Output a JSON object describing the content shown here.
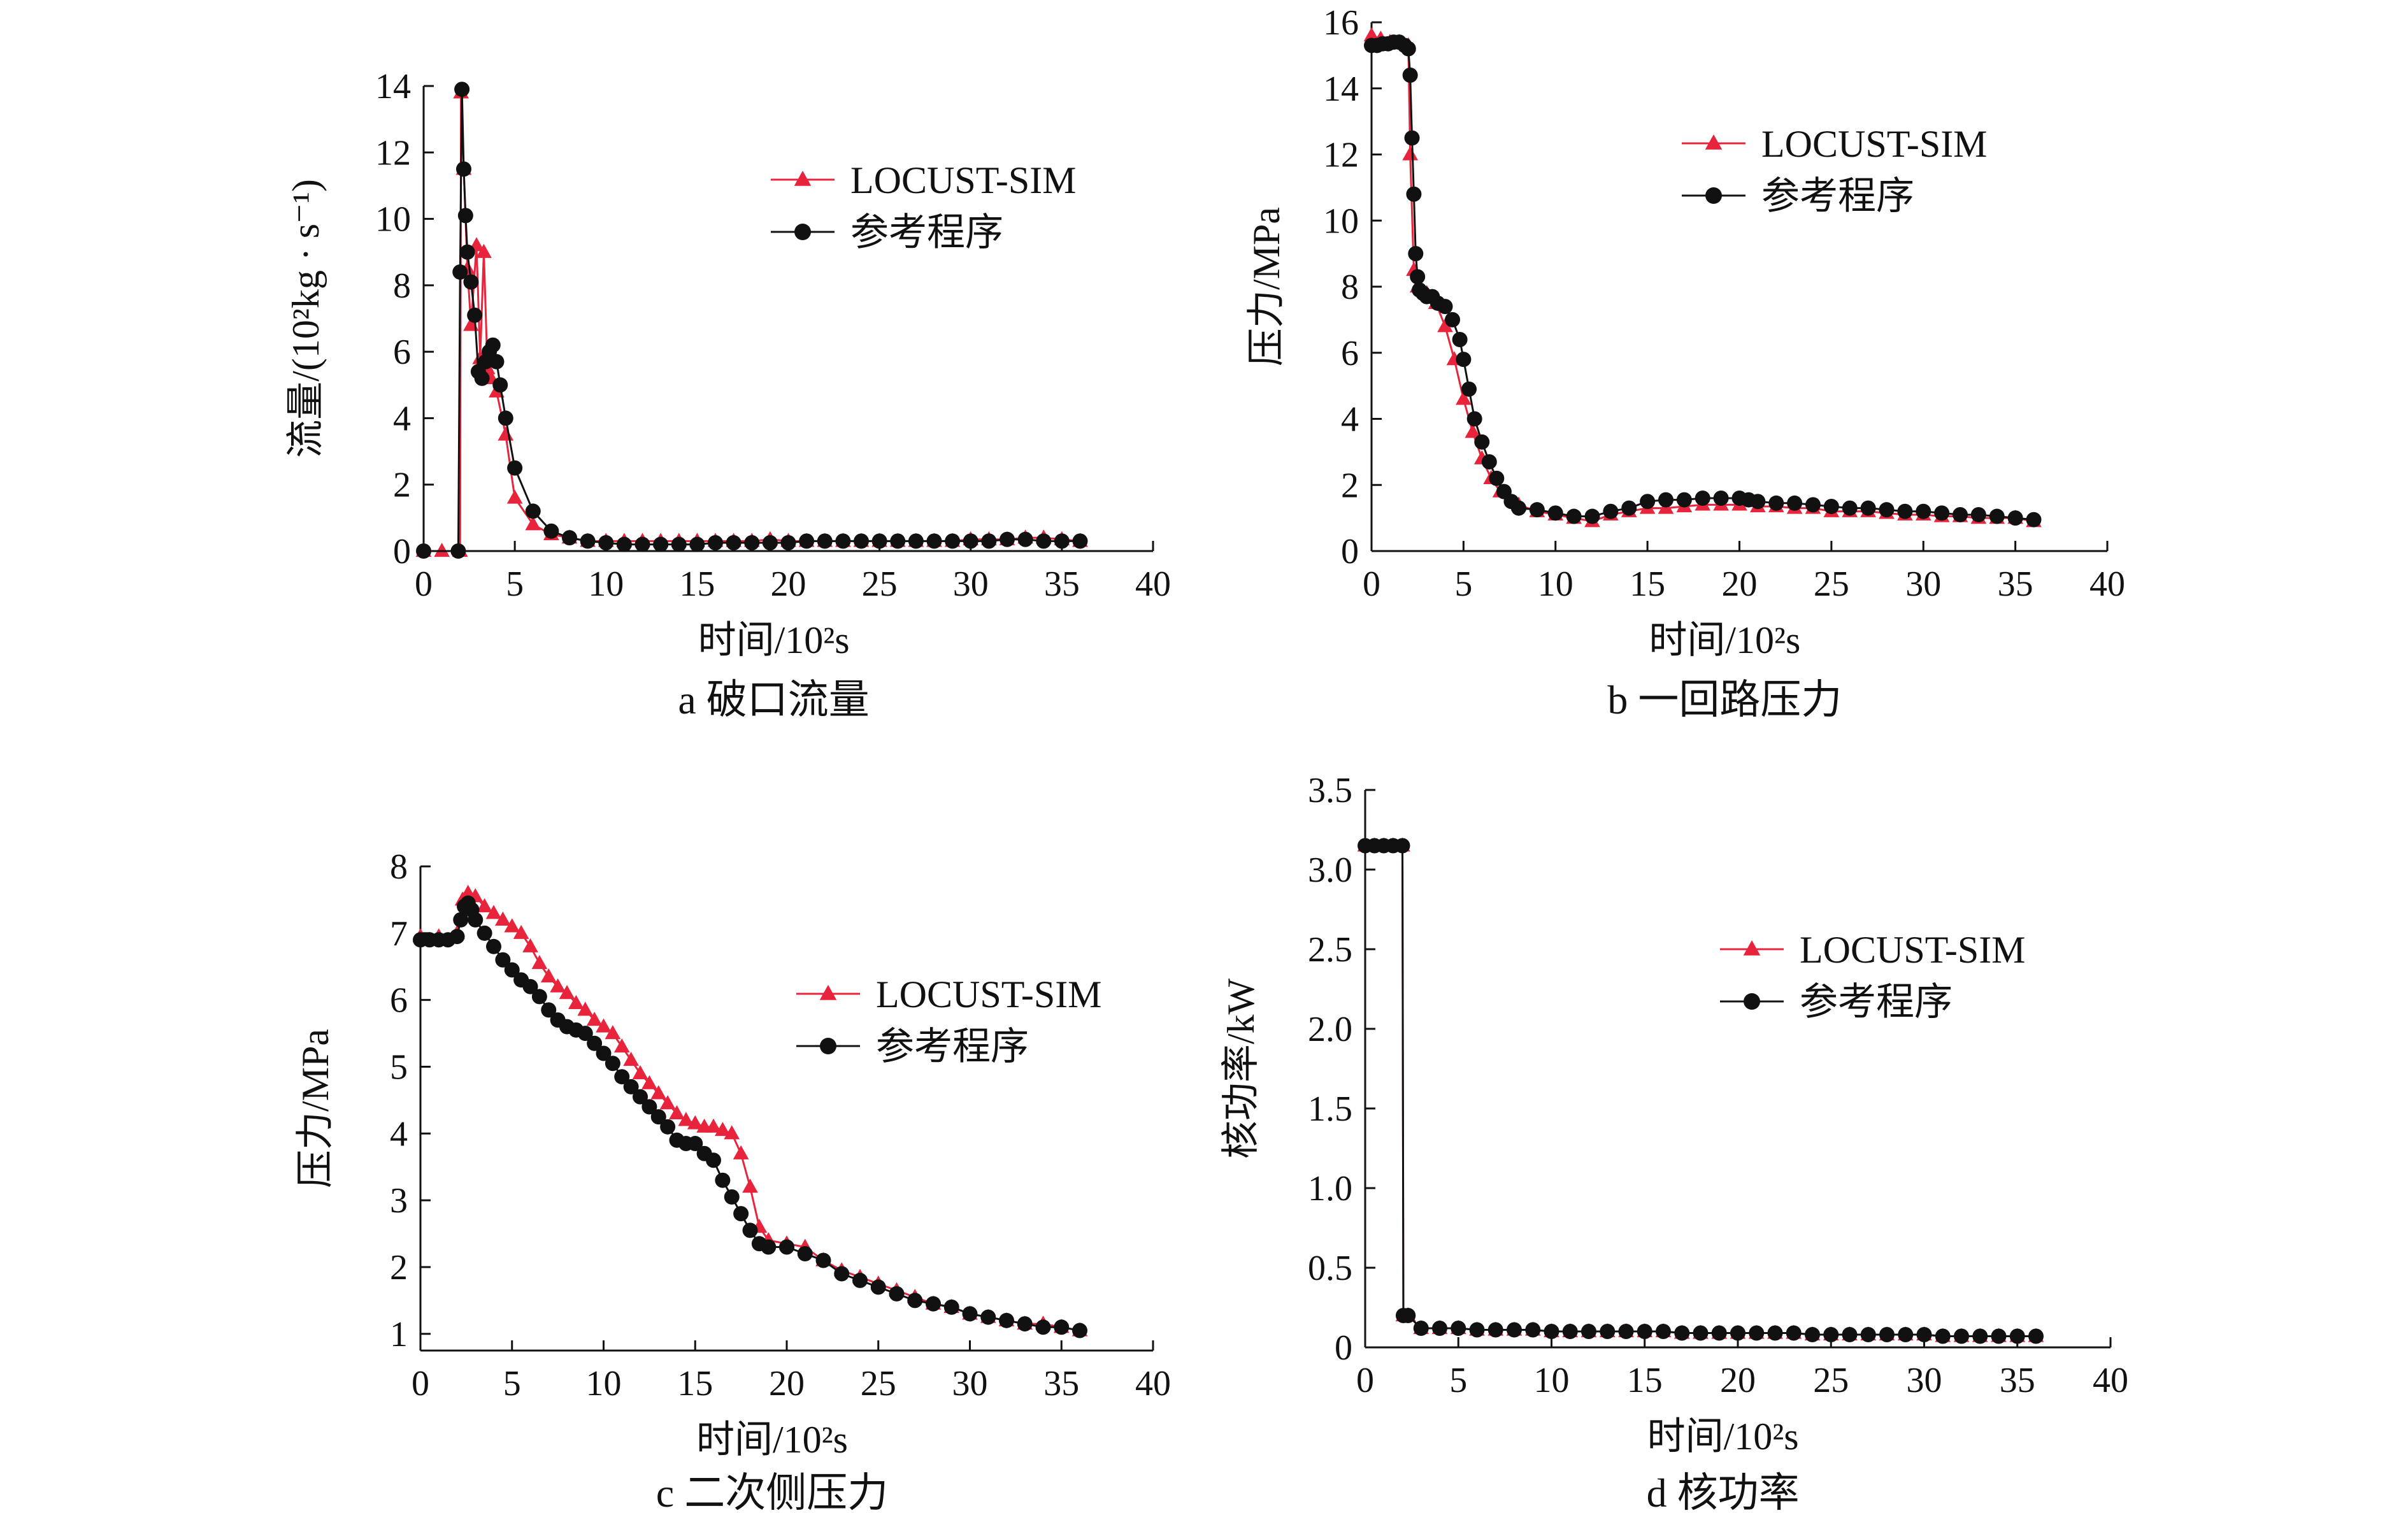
{
  "legend": {
    "series_a": "LOCUST-SIM",
    "series_b": "参考程序"
  },
  "colors": {
    "locust": "#e8243c",
    "reference": "#111111"
  },
  "chart_data": [
    {
      "id": "a",
      "type": "line",
      "caption": "a  破口流量",
      "xlabel": "时间/10²s",
      "ylabel": "流量/(10²kg · s⁻¹)",
      "xlim": [
        0,
        40
      ],
      "ylim": [
        0,
        14
      ],
      "xticks": [
        "0",
        "5",
        "10",
        "15",
        "20",
        "25",
        "30",
        "35",
        "40"
      ],
      "yticks": [
        "0",
        "2",
        "4",
        "6",
        "8",
        "10",
        "12",
        "14"
      ],
      "grid": false,
      "legend_position": "top-right",
      "series": [
        {
          "name": "LOCUST-SIM",
          "marker": "triangle",
          "x": [
            0,
            1,
            2,
            2.05,
            2.2,
            2.4,
            2.6,
            2.9,
            3.1,
            3.3,
            3.5,
            3.7,
            4.0,
            4.5,
            5,
            6,
            7,
            8,
            9,
            10,
            11,
            12,
            13,
            14,
            15,
            16,
            17,
            18,
            19,
            20,
            21,
            22,
            23,
            24,
            25,
            26,
            27,
            28,
            29,
            30,
            31,
            32,
            33,
            34,
            35,
            36
          ],
          "y": [
            0,
            0,
            0,
            13.8,
            11.5,
            8.5,
            6.8,
            9.2,
            5.8,
            9.0,
            5.5,
            5.2,
            4.8,
            3.5,
            1.6,
            0.8,
            0.5,
            0.4,
            0.3,
            0.3,
            0.3,
            0.3,
            0.3,
            0.3,
            0.3,
            0.3,
            0.3,
            0.3,
            0.35,
            0.3,
            0.3,
            0.3,
            0.3,
            0.3,
            0.3,
            0.3,
            0.3,
            0.3,
            0.3,
            0.35,
            0.35,
            0.35,
            0.4,
            0.4,
            0.35,
            0.3
          ]
        },
        {
          "name": "参考程序",
          "marker": "circle",
          "x": [
            0,
            1.9,
            2.0,
            2.1,
            2.2,
            2.3,
            2.4,
            2.6,
            2.8,
            3.0,
            3.2,
            3.4,
            3.6,
            3.8,
            4.0,
            4.2,
            4.5,
            5,
            6,
            7,
            8,
            9,
            10,
            11,
            12,
            13,
            14,
            15,
            16,
            17,
            18,
            19,
            20,
            21,
            22,
            23,
            24,
            25,
            26,
            27,
            28,
            29,
            30,
            31,
            32,
            33,
            34,
            35,
            36
          ],
          "y": [
            0,
            0,
            8.4,
            13.9,
            11.5,
            10.1,
            9.0,
            8.1,
            7.1,
            5.4,
            5.2,
            5.7,
            6.0,
            6.2,
            5.7,
            5.0,
            4.0,
            2.5,
            1.2,
            0.6,
            0.4,
            0.3,
            0.25,
            0.2,
            0.2,
            0.2,
            0.2,
            0.2,
            0.25,
            0.25,
            0.25,
            0.25,
            0.25,
            0.3,
            0.3,
            0.3,
            0.3,
            0.3,
            0.3,
            0.3,
            0.3,
            0.3,
            0.3,
            0.3,
            0.35,
            0.35,
            0.3,
            0.3,
            0.3
          ]
        }
      ]
    },
    {
      "id": "b",
      "type": "line",
      "caption": "b  一回路压力",
      "xlabel": "时间/10²s",
      "ylabel": "压力/MPa",
      "xlim": [
        0,
        40
      ],
      "ylim": [
        0,
        16
      ],
      "xticks": [
        "0",
        "5",
        "10",
        "15",
        "20",
        "25",
        "30",
        "35",
        "40"
      ],
      "yticks": [
        "0",
        "2",
        "4",
        "6",
        "8",
        "10",
        "12",
        "14",
        "16"
      ],
      "grid": false,
      "legend_position": "top-right",
      "series": [
        {
          "name": "LOCUST-SIM",
          "marker": "triangle",
          "x": [
            0,
            0.5,
            1,
            1.5,
            2,
            2.1,
            2.3,
            2.5,
            3,
            3.5,
            4,
            4.5,
            5,
            5.5,
            6,
            6.5,
            7,
            8,
            9,
            10,
            11,
            12,
            13,
            14,
            15,
            16,
            17,
            18,
            19,
            20,
            21,
            22,
            23,
            24,
            25,
            26,
            27,
            28,
            29,
            30,
            31,
            32,
            33,
            34,
            35,
            36
          ],
          "y": [
            15.6,
            15.5,
            15.4,
            15.4,
            15.3,
            12.0,
            8.5,
            8.0,
            7.8,
            7.5,
            6.8,
            5.8,
            4.6,
            3.6,
            2.8,
            2.2,
            1.8,
            1.4,
            1.2,
            1.1,
            1.0,
            0.9,
            1.1,
            1.2,
            1.3,
            1.3,
            1.35,
            1.4,
            1.4,
            1.4,
            1.35,
            1.35,
            1.3,
            1.3,
            1.2,
            1.2,
            1.2,
            1.15,
            1.1,
            1.1,
            1.05,
            1.05,
            1.0,
            1.0,
            1.0,
            0.9
          ]
        },
        {
          "name": "参考程序",
          "marker": "circle",
          "x": [
            0,
            0.3,
            0.6,
            0.9,
            1.2,
            1.5,
            1.8,
            2.0,
            2.1,
            2.2,
            2.3,
            2.4,
            2.5,
            2.6,
            2.8,
            3.0,
            3.3,
            3.6,
            4.0,
            4.4,
            4.8,
            5.0,
            5.3,
            5.6,
            6.0,
            6.4,
            6.8,
            7.2,
            7.6,
            8,
            9,
            10,
            11,
            12,
            13,
            14,
            15,
            16,
            17,
            18,
            19,
            20,
            20.5,
            21,
            22,
            23,
            24,
            25,
            26,
            27,
            28,
            29,
            30,
            31,
            32,
            33,
            34,
            35,
            36
          ],
          "y": [
            15.3,
            15.3,
            15.35,
            15.35,
            15.4,
            15.4,
            15.3,
            15.2,
            14.4,
            12.5,
            10.8,
            9.0,
            8.3,
            7.9,
            7.8,
            7.7,
            7.7,
            7.5,
            7.4,
            7.0,
            6.4,
            5.8,
            4.9,
            4.0,
            3.3,
            2.7,
            2.2,
            1.8,
            1.5,
            1.3,
            1.25,
            1.15,
            1.05,
            1.05,
            1.2,
            1.3,
            1.5,
            1.55,
            1.55,
            1.6,
            1.6,
            1.6,
            1.55,
            1.5,
            1.45,
            1.45,
            1.4,
            1.35,
            1.3,
            1.3,
            1.25,
            1.2,
            1.2,
            1.15,
            1.1,
            1.1,
            1.05,
            1.0,
            0.95
          ]
        }
      ]
    },
    {
      "id": "c",
      "type": "line",
      "caption": "c  二次侧压力",
      "xlabel": "时间/10²s",
      "ylabel": "压力/MPa",
      "xlim": [
        0,
        40
      ],
      "ylim": [
        0.75,
        8
      ],
      "xticks": [
        "0",
        "5",
        "10",
        "15",
        "20",
        "25",
        "30",
        "35",
        "40"
      ],
      "yticks": [
        "1",
        "2",
        "3",
        "4",
        "5",
        "6",
        "7",
        "8"
      ],
      "grid": false,
      "legend_position": "center-right",
      "series": [
        {
          "name": "LOCUST-SIM",
          "marker": "triangle",
          "x": [
            0,
            1,
            2,
            2.3,
            2.6,
            3.0,
            3.5,
            4,
            4.5,
            5,
            5.5,
            6,
            6.5,
            7,
            7.5,
            8,
            8.5,
            9,
            9.5,
            10,
            10.5,
            11,
            11.5,
            12,
            12.5,
            13,
            13.5,
            14,
            14.5,
            15,
            15.5,
            16,
            16.5,
            17,
            17.5,
            18,
            18.5,
            19,
            20,
            21,
            22,
            23,
            24,
            25,
            26,
            27,
            28,
            29,
            30,
            31,
            32,
            33,
            34,
            35,
            36
          ],
          "y": [
            6.95,
            6.95,
            7.0,
            7.5,
            7.6,
            7.55,
            7.4,
            7.3,
            7.2,
            7.1,
            7.0,
            6.8,
            6.55,
            6.35,
            6.2,
            6.1,
            5.95,
            5.85,
            5.7,
            5.6,
            5.5,
            5.3,
            5.1,
            4.9,
            4.75,
            4.6,
            4.45,
            4.3,
            4.2,
            4.15,
            4.1,
            4.1,
            4.05,
            4.0,
            3.7,
            3.2,
            2.6,
            2.4,
            2.35,
            2.3,
            2.1,
            1.95,
            1.85,
            1.75,
            1.65,
            1.55,
            1.45,
            1.4,
            1.3,
            1.25,
            1.2,
            1.15,
            1.15,
            1.1,
            1.05
          ]
        },
        {
          "name": "参考程序",
          "marker": "circle",
          "x": [
            0,
            0.5,
            1,
            1.5,
            2,
            2.2,
            2.4,
            2.6,
            2.8,
            3.0,
            3.5,
            4,
            4.5,
            5,
            5.5,
            6,
            6.5,
            7,
            7.5,
            8,
            8.5,
            9,
            9.5,
            10,
            10.5,
            11,
            11.5,
            12,
            12.5,
            13,
            13.5,
            14,
            14.5,
            15,
            15.5,
            16,
            16.5,
            17,
            17.5,
            18,
            18.5,
            19,
            20,
            21,
            22,
            23,
            24,
            25,
            26,
            27,
            28,
            29,
            30,
            31,
            32,
            33,
            34,
            35,
            36
          ],
          "y": [
            6.9,
            6.9,
            6.9,
            6.9,
            6.95,
            7.2,
            7.4,
            7.45,
            7.35,
            7.2,
            7.0,
            6.8,
            6.6,
            6.45,
            6.3,
            6.2,
            6.05,
            5.85,
            5.7,
            5.6,
            5.55,
            5.5,
            5.35,
            5.2,
            5.05,
            4.85,
            4.7,
            4.55,
            4.4,
            4.25,
            4.1,
            3.9,
            3.85,
            3.85,
            3.7,
            3.6,
            3.3,
            3.05,
            2.8,
            2.55,
            2.35,
            2.3,
            2.3,
            2.2,
            2.1,
            1.9,
            1.8,
            1.7,
            1.6,
            1.5,
            1.45,
            1.4,
            1.3,
            1.25,
            1.2,
            1.15,
            1.1,
            1.1,
            1.05
          ]
        }
      ]
    },
    {
      "id": "d",
      "type": "line",
      "caption": "d  核功率",
      "xlabel": "时间/10²s",
      "ylabel": "核功率/kW",
      "xlim": [
        0,
        40
      ],
      "ylim": [
        0,
        3.5
      ],
      "xticks": [
        "0",
        "5",
        "10",
        "15",
        "20",
        "25",
        "30",
        "35",
        "40"
      ],
      "yticks": [
        "0",
        "0.5",
        "1.0",
        "1.5",
        "2.0",
        "2.5",
        "3.0",
        "3.5"
      ],
      "grid": false,
      "legend_position": "center-right",
      "series": [
        {
          "name": "LOCUST-SIM",
          "marker": "triangle",
          "x": [
            0,
            0.5,
            1,
            1.5,
            2,
            2.05,
            2.3,
            3,
            4,
            5,
            6,
            7,
            8,
            9,
            10,
            11,
            12,
            13,
            14,
            15,
            16,
            17,
            18,
            19,
            20,
            21,
            22,
            23,
            24,
            25,
            26,
            27,
            28,
            29,
            30,
            31,
            32,
            33,
            34,
            35,
            36
          ],
          "y": [
            3.15,
            3.15,
            3.15,
            3.15,
            3.15,
            0.2,
            0.2,
            0.12,
            0.12,
            0.12,
            0.11,
            0.11,
            0.11,
            0.11,
            0.1,
            0.1,
            0.1,
            0.1,
            0.1,
            0.1,
            0.1,
            0.09,
            0.09,
            0.09,
            0.09,
            0.09,
            0.09,
            0.09,
            0.08,
            0.08,
            0.08,
            0.08,
            0.08,
            0.08,
            0.08,
            0.07,
            0.07,
            0.07,
            0.07,
            0.07,
            0.07
          ]
        },
        {
          "name": "参考程序",
          "marker": "circle",
          "x": [
            0,
            0.5,
            1,
            1.5,
            2,
            2.05,
            2.3,
            3,
            4,
            5,
            6,
            7,
            8,
            9,
            10,
            11,
            12,
            13,
            14,
            15,
            16,
            17,
            18,
            19,
            20,
            21,
            22,
            23,
            24,
            25,
            26,
            27,
            28,
            29,
            30,
            31,
            32,
            33,
            34,
            35,
            36
          ],
          "y": [
            3.15,
            3.15,
            3.15,
            3.15,
            3.15,
            0.2,
            0.2,
            0.12,
            0.12,
            0.12,
            0.11,
            0.11,
            0.11,
            0.11,
            0.1,
            0.1,
            0.1,
            0.1,
            0.1,
            0.1,
            0.1,
            0.09,
            0.09,
            0.09,
            0.09,
            0.09,
            0.09,
            0.09,
            0.08,
            0.08,
            0.08,
            0.08,
            0.08,
            0.08,
            0.08,
            0.07,
            0.07,
            0.07,
            0.07,
            0.07,
            0.07
          ]
        }
      ]
    }
  ]
}
